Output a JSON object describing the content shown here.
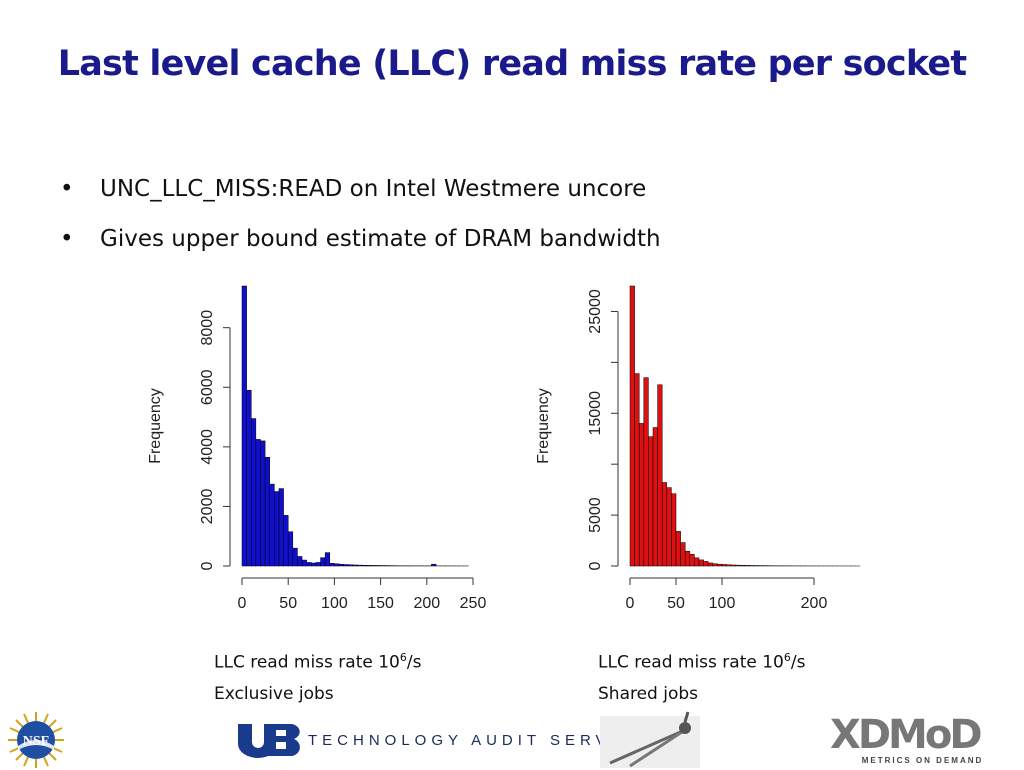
{
  "slide": {
    "title": "Last level cache (LLC) read miss rate per socket",
    "bullets": [
      "UNC_LLC_MISS:READ on Intel Westmere uncore",
      "Gives upper bound estimate of DRAM bandwidth"
    ],
    "bullet_glyph": "•"
  },
  "captions": [
    {
      "line1_prefix": "LLC read miss rate 10",
      "line1_sup": "6",
      "line1_suffix": "/s",
      "line2": "Exclusive jobs"
    },
    {
      "line1_prefix": "LLC read miss rate 10",
      "line1_sup": "6",
      "line1_suffix": "/s",
      "line2": "Shared jobs"
    }
  ],
  "footer": {
    "org_text": "TECHNOLOGY AUDIT SERVICE",
    "logo_left": "NSF",
    "logo_ub": "UB",
    "logo_right": "XDMoD",
    "logo_right_sub": "METRICS ON DEMAND",
    "compass_icon": "compass-icon"
  },
  "colors": {
    "title": "#1a1a8c",
    "exclusive_bars": "#1010cc",
    "shared_bars": "#dd1111",
    "ub_blue": "#1a3a8c"
  },
  "chart_data": [
    {
      "type": "bar",
      "title": "",
      "xlabel": "",
      "ylabel": "Frequency",
      "bin_width": 5,
      "x_bin_starts": [
        0,
        5,
        10,
        15,
        20,
        25,
        30,
        35,
        40,
        45,
        50,
        55,
        60,
        65,
        70,
        75,
        80,
        85,
        90,
        95,
        100,
        105,
        110,
        115,
        120,
        125,
        130,
        135,
        140,
        145,
        150,
        155,
        160,
        165,
        170,
        175,
        180,
        185,
        190,
        195,
        200,
        205,
        210,
        215,
        220,
        225,
        230,
        235,
        240
      ],
      "values": [
        9400,
        5900,
        4950,
        4250,
        4200,
        3650,
        2750,
        2500,
        2600,
        1700,
        1150,
        600,
        320,
        200,
        120,
        100,
        120,
        280,
        450,
        90,
        75,
        60,
        50,
        42,
        35,
        30,
        25,
        22,
        20,
        18,
        16,
        14,
        12,
        10,
        8,
        7,
        7,
        6,
        6,
        5,
        5,
        60,
        5,
        4,
        4,
        3,
        3,
        2,
        2
      ],
      "xticks": [
        0,
        50,
        100,
        150,
        200,
        250
      ],
      "yticks": [
        0,
        2000,
        4000,
        6000,
        8000
      ],
      "xlim": [
        0,
        250
      ],
      "ylim": [
        0,
        9400
      ],
      "color": "#1010cc"
    },
    {
      "type": "bar",
      "title": "",
      "xlabel": "",
      "ylabel": "Frequency",
      "bin_width": 5,
      "x_bin_starts": [
        0,
        5,
        10,
        15,
        20,
        25,
        30,
        35,
        40,
        45,
        50,
        55,
        60,
        65,
        70,
        75,
        80,
        85,
        90,
        95,
        100,
        105,
        110,
        115,
        120,
        125,
        130,
        135,
        140,
        145,
        150,
        155,
        160,
        165,
        170,
        175,
        180,
        185,
        190,
        195,
        200,
        205,
        210,
        215,
        220,
        225,
        230,
        235,
        240,
        245
      ],
      "values": [
        27500,
        18900,
        14000,
        18500,
        12700,
        13600,
        17800,
        8200,
        7700,
        7100,
        3400,
        2300,
        1450,
        1150,
        800,
        600,
        450,
        300,
        220,
        180,
        150,
        120,
        100,
        85,
        70,
        60,
        50,
        45,
        40,
        35,
        30,
        25,
        22,
        20,
        18,
        15,
        13,
        12,
        10,
        9,
        8,
        7,
        6,
        5,
        5,
        4,
        4,
        3,
        3,
        2
      ],
      "xticks": [
        0,
        50,
        100,
        200
      ],
      "yticks": [
        5000,
        15000,
        25000
      ],
      "extra_tick_marks": [
        0,
        5000,
        10000,
        15000,
        20000,
        25000
      ],
      "ytick_label_zero": "0",
      "xlim": [
        0,
        250
      ],
      "ylim": [
        0,
        27500
      ],
      "color": "#dd1111"
    }
  ]
}
